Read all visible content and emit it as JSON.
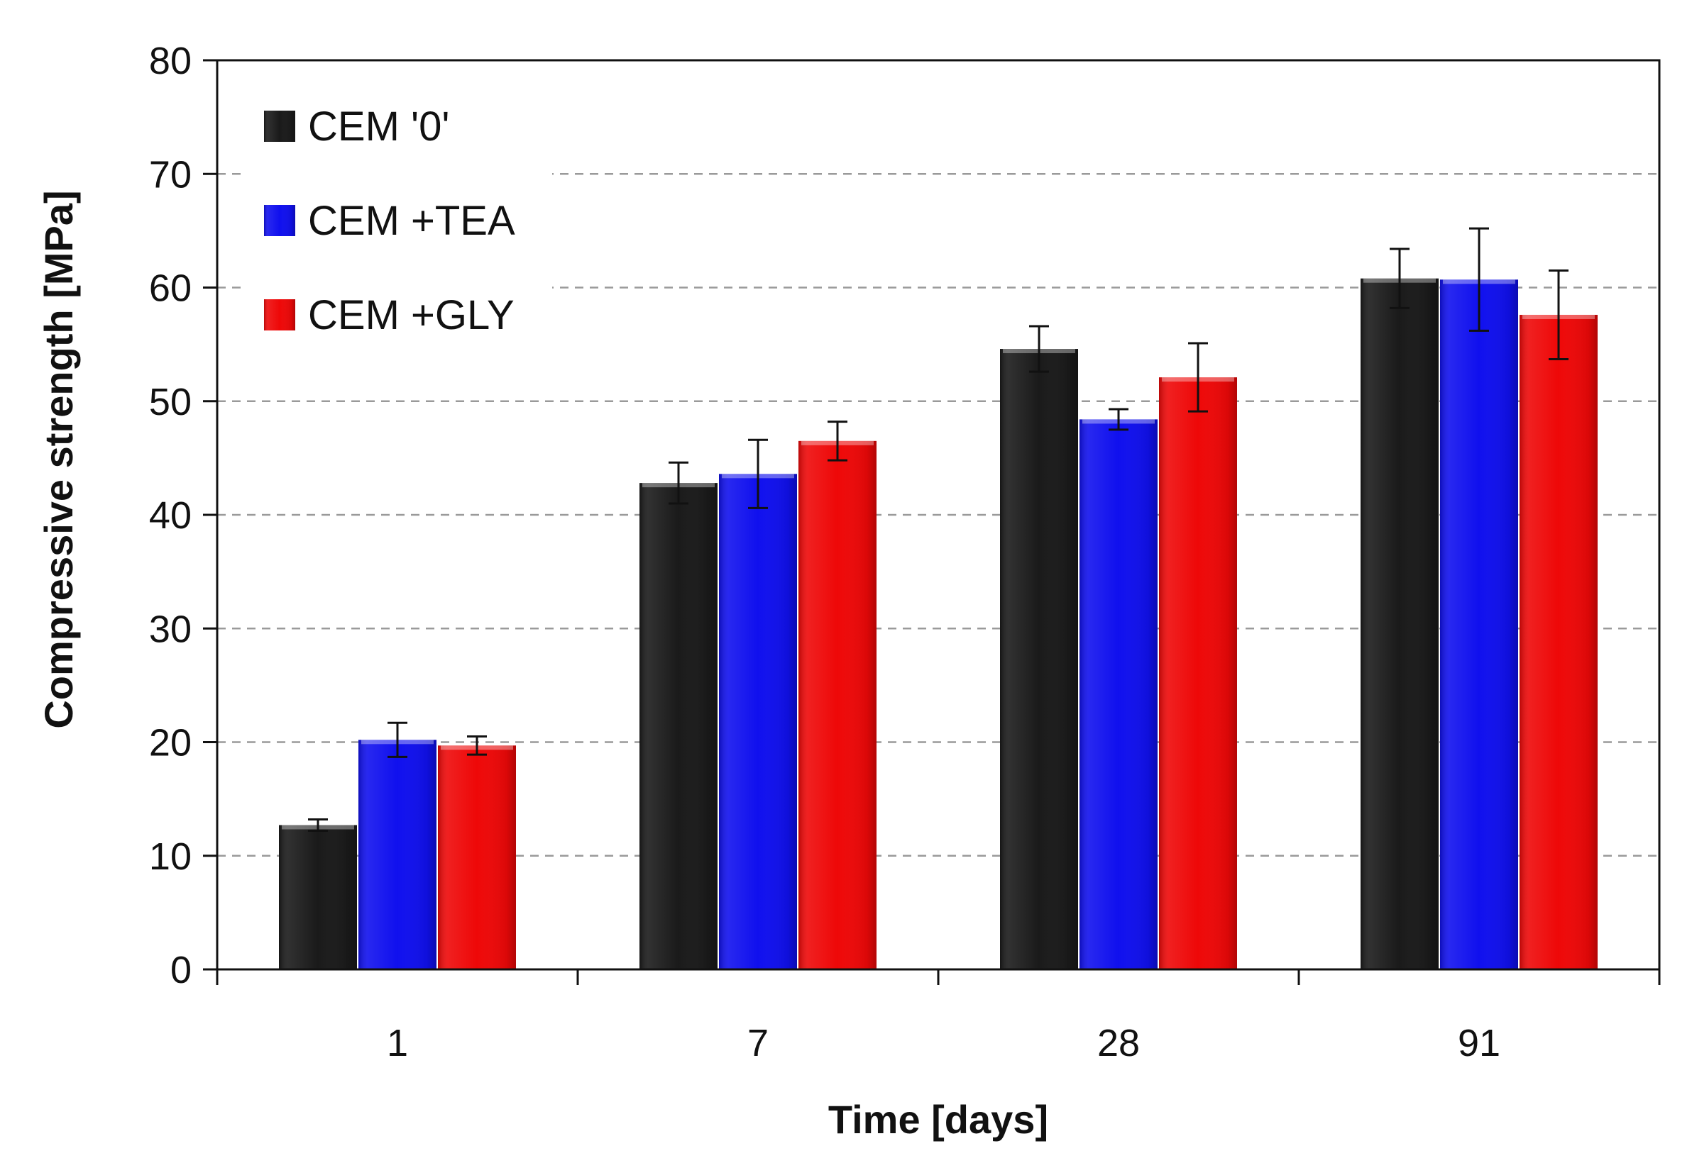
{
  "chart_data": {
    "type": "bar",
    "title": "",
    "xlabel": "Time [days]",
    "ylabel": "Compressive strength [MPa]",
    "categories": [
      "1",
      "7",
      "28",
      "91"
    ],
    "ylim": [
      0,
      80
    ],
    "yticks": [
      0,
      10,
      20,
      30,
      40,
      50,
      60,
      70,
      80
    ],
    "ytick_labels": [
      "0",
      "10",
      "20",
      "30",
      "40",
      "50",
      "60",
      "70",
      "80"
    ],
    "grid": "horizontal dashed",
    "legend_position": "top-left",
    "series": [
      {
        "name": "CEM '0'",
        "color": "#1a1a1a",
        "values": [
          12.7,
          42.8,
          54.6,
          60.8
        ],
        "errors": [
          0.5,
          1.8,
          2.0,
          2.6
        ]
      },
      {
        "name": "CEM +TEA",
        "color": "#1010ee",
        "values": [
          20.2,
          43.6,
          48.4,
          60.7
        ],
        "errors": [
          1.5,
          3.0,
          0.9,
          4.5
        ]
      },
      {
        "name": "CEM +GLY",
        "color": "#ee0808",
        "values": [
          19.7,
          46.5,
          52.1,
          57.6
        ],
        "errors": [
          0.8,
          1.7,
          3.0,
          3.9
        ]
      }
    ]
  }
}
